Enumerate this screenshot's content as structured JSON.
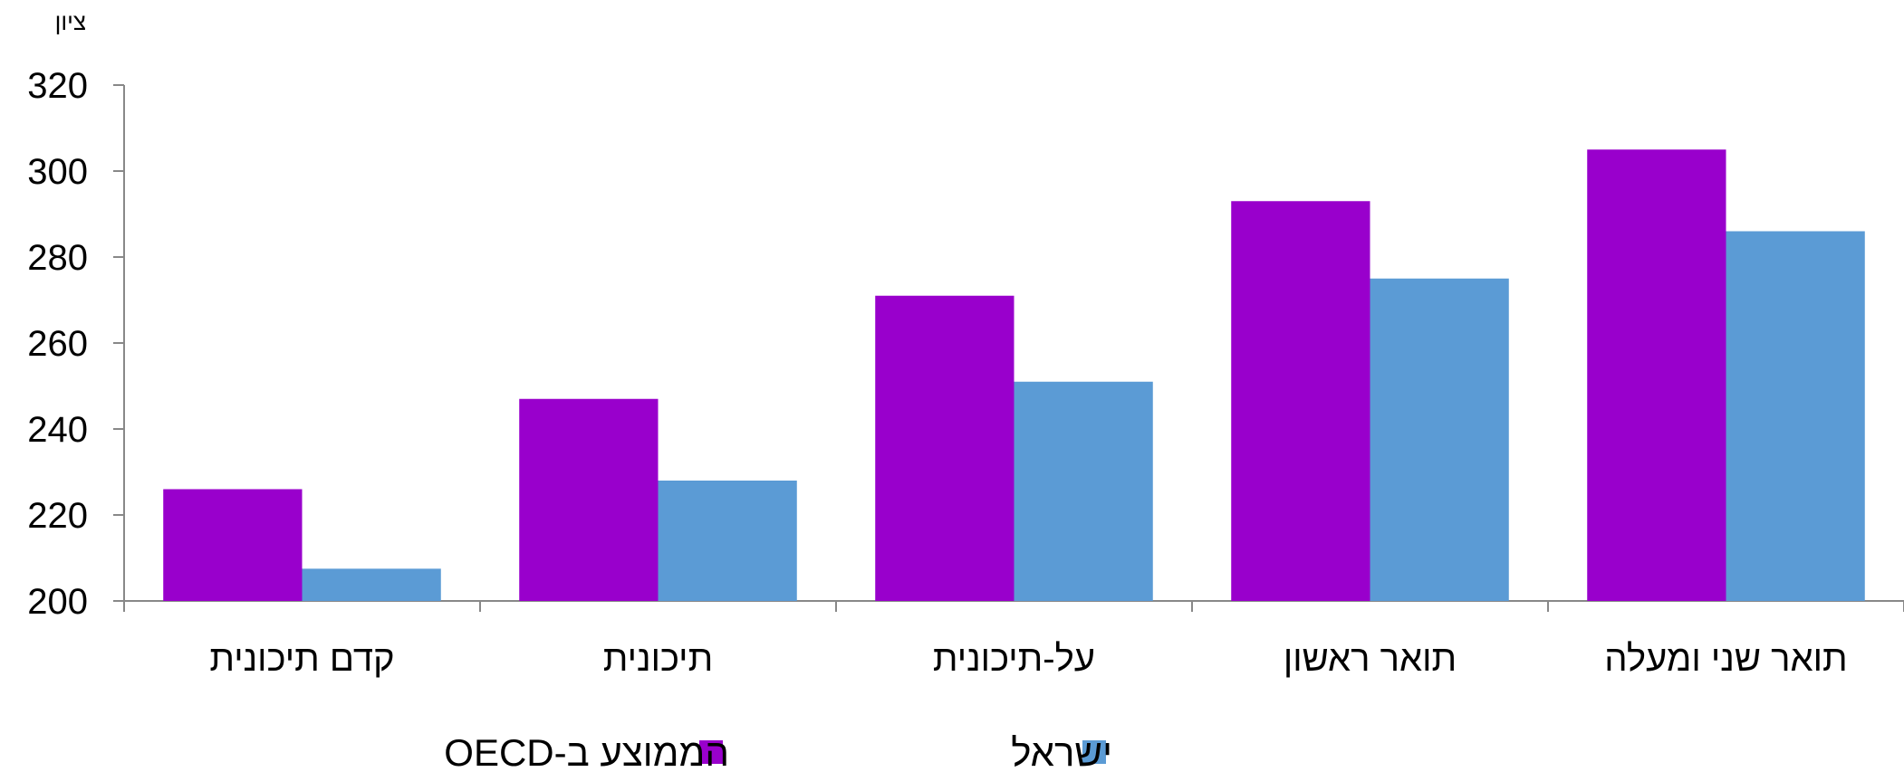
{
  "chart_data": {
    "type": "bar",
    "title": "",
    "ylabel": "ציון",
    "xlabel": "",
    "ylim": [
      200,
      320
    ],
    "yticks": [
      200,
      220,
      240,
      260,
      280,
      300,
      320
    ],
    "categories": [
      "קדם תיכונית",
      "תיכונית",
      "על-תיכונית",
      "תואר ראשון",
      "תואר שני ומעלה"
    ],
    "series": [
      {
        "name": "הממוצע ב-OECD",
        "color": "#9900CC",
        "values": [
          226,
          247,
          271,
          293,
          305
        ]
      },
      {
        "name": "ישראל",
        "color": "#5B9BD5",
        "values": [
          207.5,
          228,
          251,
          275,
          286
        ]
      }
    ],
    "legend_position": "bottom",
    "grid": false
  }
}
